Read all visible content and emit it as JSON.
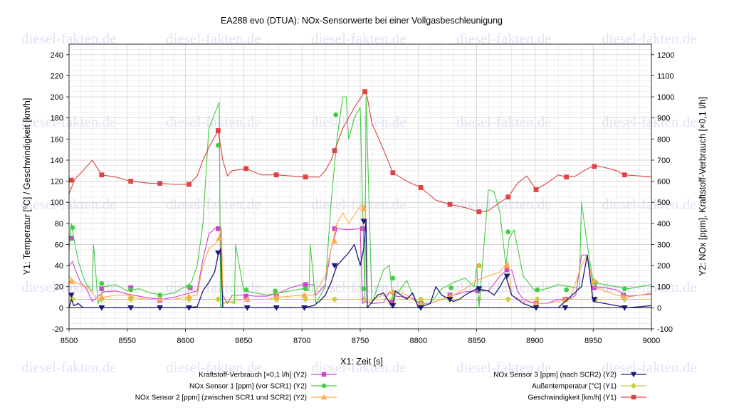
{
  "chart_data": {
    "type": "line",
    "title": "EA288 evo (DTUA): NOx-Sensorwerte bei einer Vollgasbeschleunigung",
    "xlabel": "X1: Zeit [s]",
    "ylabel": "Y1: Temperatur [°C] / Geschwindigkeit [km/h]",
    "y2label": "Y2: NOx [ppm], Kraftstoff-Verbrauch [×0,1 l/h]",
    "xlim": [
      8500,
      9000
    ],
    "ylim": [
      -20,
      250
    ],
    "y2lim": [
      -100,
      1250
    ],
    "xticks": [
      8500,
      8550,
      8600,
      8650,
      8700,
      8750,
      8800,
      8850,
      8900,
      8950,
      9000
    ],
    "yticks": [
      -20,
      0,
      20,
      40,
      60,
      80,
      100,
      120,
      140,
      160,
      180,
      200,
      220,
      240
    ],
    "y2ticks": [
      -100,
      0,
      100,
      200,
      300,
      400,
      500,
      600,
      700,
      800,
      900,
      1000,
      1100,
      1200
    ],
    "grid": true,
    "legend_position": "bottom",
    "watermark": "diesel-fakten.de",
    "series": [
      {
        "name": "Kraftstoff-Verbrauch [×0,1 l/h] (Y2)",
        "axis": "y2",
        "color": "#cc44cc",
        "marker": "square",
        "x": [
          8500,
          8503,
          8506,
          8510,
          8515,
          8520,
          8525,
          8530,
          8540,
          8550,
          8560,
          8570,
          8580,
          8590,
          8600,
          8610,
          8615,
          8620,
          8625,
          8630,
          8632,
          8636,
          8640,
          8650,
          8660,
          8670,
          8680,
          8690,
          8700,
          8710,
          8712,
          8720,
          8725,
          8730,
          8740,
          8750,
          8752,
          8755,
          8760,
          8770,
          8775,
          8780,
          8790,
          8795,
          8800,
          8810,
          8820,
          8830,
          8840,
          8850,
          8860,
          8870,
          8875,
          8880,
          8885,
          8890,
          8900,
          8910,
          8920,
          8930,
          8935,
          8940,
          8945,
          8950,
          8960,
          8970,
          8980,
          8990,
          9000
        ],
        "y": [
          200,
          220,
          170,
          120,
          90,
          30,
          55,
          75,
          80,
          65,
          55,
          45,
          40,
          50,
          65,
          80,
          230,
          350,
          375,
          380,
          60,
          20,
          60,
          60,
          55,
          55,
          70,
          95,
          110,
          110,
          60,
          110,
          280,
          375,
          370,
          375,
          20,
          30,
          20,
          25,
          75,
          55,
          50,
          45,
          20,
          20,
          40,
          60,
          75,
          80,
          80,
          150,
          175,
          180,
          80,
          40,
          20,
          20,
          40,
          40,
          60,
          250,
          250,
          100,
          95,
          85,
          55,
          60,
          65
        ],
        "markers_x": [
          8502,
          8528,
          8553,
          8578,
          8604,
          8628,
          8652,
          8678,
          8703,
          8728,
          8752,
          8777,
          8802,
          8827,
          8851,
          8876,
          8901,
          8926,
          8951,
          8976
        ],
        "markers_y": [
          330,
          90,
          95,
          35,
          95,
          375,
          55,
          55,
          110,
          375,
          375,
          25,
          20,
          60,
          80,
          180,
          20,
          40,
          95,
          60
        ]
      },
      {
        "name": "NOx Sensor 1 [ppm] (vor SCR1) (Y2)",
        "axis": "y2",
        "color": "#44cc44",
        "marker": "circle",
        "x": [
          8500,
          8502,
          8505,
          8508,
          8512,
          8515,
          8520,
          8521,
          8525,
          8530,
          8540,
          8550,
          8560,
          8570,
          8580,
          8590,
          8600,
          8605,
          8610,
          8615,
          8620,
          8625,
          8629,
          8630,
          8632,
          8636,
          8642,
          8643,
          8650,
          8660,
          8670,
          8680,
          8690,
          8700,
          8706,
          8707,
          8712,
          8720,
          8725,
          8730,
          8735,
          8738,
          8740,
          8745,
          8750,
          8754,
          8755,
          8760,
          8770,
          8775,
          8778,
          8790,
          8795,
          8800,
          8810,
          8820,
          8830,
          8840,
          8848,
          8850,
          8852,
          8860,
          8865,
          8870,
          8875,
          8878,
          8882,
          8890,
          8900,
          8910,
          8920,
          8930,
          8938,
          8940,
          8945,
          8950,
          8960,
          8970,
          8980,
          8990,
          9000
        ],
        "y": [
          270,
          400,
          300,
          220,
          150,
          110,
          80,
          300,
          20,
          100,
          110,
          80,
          90,
          70,
          60,
          70,
          100,
          120,
          200,
          400,
          850,
          920,
          975,
          0,
          20,
          30,
          20,
          300,
          80,
          70,
          60,
          70,
          80,
          90,
          80,
          300,
          20,
          100,
          500,
          800,
          1000,
          1000,
          800,
          900,
          950,
          50,
          1000,
          20,
          180,
          200,
          40,
          130,
          60,
          20,
          20,
          90,
          120,
          140,
          100,
          200,
          0,
          560,
          550,
          450,
          200,
          330,
          370,
          150,
          80,
          90,
          110,
          100,
          90,
          500,
          300,
          120,
          110,
          100,
          90,
          100,
          110
        ],
        "markers_x": [
          8503,
          8528,
          8553,
          8578,
          8603,
          8628,
          8652,
          8677,
          8703,
          8729,
          8753,
          8778,
          8803,
          8828,
          8852,
          8877,
          8902,
          8927,
          8952,
          8977
        ],
        "markers_y": [
          380,
          115,
          85,
          60,
          100,
          770,
          85,
          80,
          90,
          915,
          90,
          140,
          20,
          95,
          200,
          360,
          85,
          85,
          120,
          90
        ]
      },
      {
        "name": "NOx Sensor 2 [ppm] (zwischen SCR1 und SCR2) (Y2)",
        "axis": "y2",
        "color": "#ffaa44",
        "marker": "triangle-up",
        "x": [
          8500,
          8505,
          8510,
          8515,
          8520,
          8525,
          8530,
          8540,
          8550,
          8560,
          8570,
          8580,
          8590,
          8600,
          8610,
          8615,
          8620,
          8625,
          8628,
          8631,
          8632,
          8640,
          8650,
          8660,
          8670,
          8680,
          8690,
          8700,
          8710,
          8720,
          8725,
          8730,
          8735,
          8740,
          8750,
          8754,
          8756,
          8760,
          8770,
          8780,
          8790,
          8800,
          8810,
          8820,
          8830,
          8840,
          8850,
          8860,
          8870,
          8877,
          8880,
          8890,
          8900,
          8910,
          8920,
          8930,
          8940,
          8945,
          8950,
          8960,
          8970,
          8980,
          8990,
          9000
        ],
        "y": [
          150,
          120,
          110,
          100,
          70,
          40,
          50,
          60,
          60,
          45,
          40,
          40,
          40,
          50,
          60,
          200,
          280,
          300,
          320,
          380,
          20,
          30,
          40,
          40,
          40,
          50,
          55,
          60,
          60,
          150,
          280,
          400,
          450,
          400,
          480,
          490,
          20,
          40,
          60,
          80,
          60,
          20,
          20,
          40,
          60,
          90,
          130,
          150,
          170,
          220,
          60,
          30,
          20,
          20,
          30,
          40,
          200,
          250,
          100,
          80,
          60,
          50,
          60,
          70
        ],
        "markers_x": [
          8502,
          8528,
          8553,
          8578,
          8603,
          8629,
          8653,
          8678,
          8702,
          8728,
          8753,
          8778,
          8802,
          8827,
          8852,
          8876,
          8901,
          8926,
          8951,
          8976
        ],
        "markers_y": [
          125,
          50,
          55,
          40,
          55,
          330,
          40,
          55,
          60,
          315,
          470,
          75,
          20,
          55,
          200,
          200,
          20,
          40,
          130,
          55
        ]
      },
      {
        "name": "NOx Sensor 3 [ppm] (nach SCR2) (Y2)",
        "axis": "y2",
        "color": "#1a1a7a",
        "marker": "triangle-down",
        "x": [
          8500,
          8502,
          8504,
          8508,
          8512,
          8520,
          8530,
          8550,
          8580,
          8600,
          8610,
          8615,
          8620,
          8625,
          8628,
          8630,
          8632,
          8640,
          8650,
          8680,
          8700,
          8710,
          8715,
          8720,
          8725,
          8730,
          8735,
          8740,
          8745,
          8750,
          8753,
          8755,
          8756,
          8765,
          8770,
          8778,
          8780,
          8790,
          8795,
          8800,
          8810,
          8815,
          8820,
          8830,
          8835,
          8840,
          8850,
          8860,
          8865,
          8870,
          8875,
          8880,
          8890,
          8900,
          8920,
          8940,
          8945,
          8950,
          8960,
          8970,
          8980,
          8990,
          9000
        ],
        "y": [
          0,
          40,
          10,
          20,
          0,
          0,
          0,
          0,
          0,
          0,
          5,
          80,
          120,
          170,
          250,
          280,
          0,
          0,
          0,
          0,
          0,
          10,
          30,
          60,
          120,
          200,
          230,
          260,
          300,
          200,
          280,
          420,
          0,
          60,
          70,
          0,
          80,
          40,
          70,
          0,
          20,
          100,
          60,
          30,
          40,
          60,
          90,
          80,
          60,
          100,
          150,
          60,
          20,
          0,
          0,
          100,
          250,
          30,
          20,
          10,
          0,
          5,
          10
        ],
        "markers_x": [
          8502,
          8528,
          8553,
          8578,
          8603,
          8628,
          8653,
          8678,
          8702,
          8728,
          8753,
          8778,
          8802,
          8827,
          8852,
          8876,
          8901,
          8926,
          8951,
          8977
        ],
        "markers_y": [
          60,
          0,
          0,
          0,
          0,
          260,
          0,
          0,
          0,
          200,
          410,
          10,
          0,
          40,
          90,
          150,
          0,
          0,
          40,
          0
        ]
      },
      {
        "name": "Außentemperatur [°C] (Y1)",
        "axis": "y1",
        "color": "#cccc44",
        "marker": "diamond",
        "x": [
          8500,
          9000
        ],
        "y": [
          8,
          8
        ],
        "markers_x": [
          8503,
          8528,
          8553,
          8578,
          8603,
          8628,
          8653,
          8678,
          8703,
          8728,
          8753,
          8778,
          8802,
          8827,
          8852,
          8877,
          8902,
          8927,
          8952,
          8977
        ],
        "markers_y": [
          8,
          8,
          8,
          8,
          8,
          8,
          8,
          8,
          8,
          8,
          8,
          8,
          8,
          8,
          8,
          8,
          8,
          8,
          8,
          8
        ]
      },
      {
        "name": "Geschwindigkeit [km/h] (Y1)",
        "axis": "y1",
        "color": "#dd4444",
        "marker": "square",
        "x": [
          8500,
          8505,
          8512,
          8520,
          8528,
          8540,
          8553,
          8570,
          8578,
          8590,
          8603,
          8610,
          8615,
          8620,
          8625,
          8628,
          8632,
          8636,
          8640,
          8652,
          8665,
          8678,
          8690,
          8703,
          8715,
          8720,
          8725,
          8728,
          8735,
          8745,
          8754,
          8756,
          8760,
          8770,
          8778,
          8790,
          8802,
          8815,
          8827,
          8840,
          8852,
          8860,
          8870,
          8877,
          8885,
          8893,
          8901,
          8910,
          8920,
          8927,
          8935,
          8942,
          8951,
          8960,
          8970,
          8977,
          8990,
          9000
        ],
        "y": [
          108,
          122,
          130,
          140,
          126,
          124,
          120,
          118,
          118,
          117,
          117,
          125,
          140,
          152,
          162,
          168,
          140,
          125,
          130,
          132,
          126,
          126,
          125,
          124,
          124,
          130,
          140,
          149,
          170,
          190,
          205,
          200,
          175,
          150,
          128,
          120,
          114,
          102,
          98,
          95,
          91,
          92,
          100,
          105,
          118,
          125,
          112,
          118,
          126,
          124,
          125,
          130,
          135,
          133,
          130,
          126,
          125,
          124
        ],
        "markers_x": [
          8502,
          8528,
          8553,
          8578,
          8603,
          8628,
          8652,
          8678,
          8703,
          8728,
          8754,
          8778,
          8802,
          8827,
          8852,
          8877,
          8901,
          8927,
          8951,
          8977
        ],
        "markers_y": [
          121,
          126,
          120,
          118,
          117,
          168,
          132,
          126,
          124,
          149,
          205,
          128,
          114,
          98,
          91,
          105,
          112,
          124,
          134,
          126
        ]
      }
    ]
  }
}
